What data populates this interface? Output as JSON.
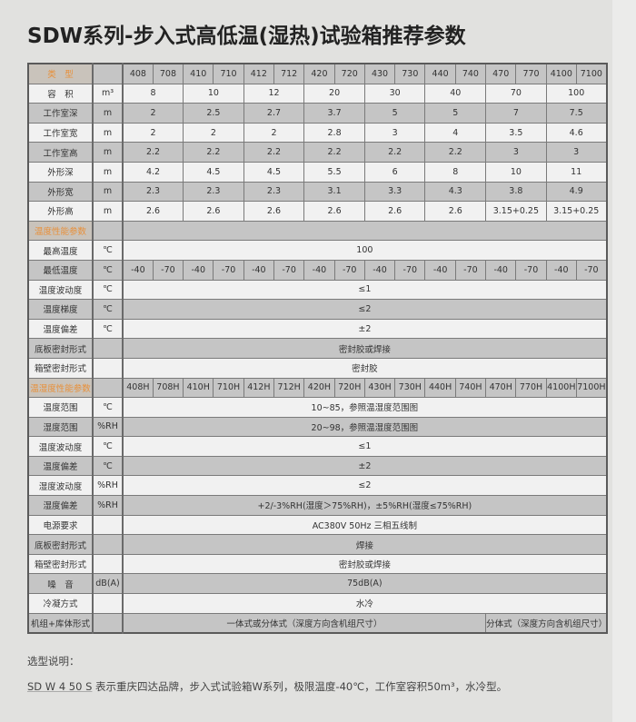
{
  "title": "SDW系列-步入式高低温(湿热)试验箱推荐参数",
  "colors": {
    "section_label": "#e8903a",
    "row_light": "#f1f1f1",
    "row_dark": "#c5c5c5",
    "background": "#e1e1df"
  },
  "rows": [
    {
      "label": "类　型",
      "unit": "",
      "section": true,
      "shade": "g",
      "cells": [
        {
          "t": "408"
        },
        {
          "t": "708"
        },
        {
          "t": "410"
        },
        {
          "t": "710"
        },
        {
          "t": "412"
        },
        {
          "t": "712"
        },
        {
          "t": "420"
        },
        {
          "t": "720"
        },
        {
          "t": "430"
        },
        {
          "t": "730"
        },
        {
          "t": "440"
        },
        {
          "t": "740"
        },
        {
          "t": "470"
        },
        {
          "t": "770"
        },
        {
          "t": "4100"
        },
        {
          "t": "7100"
        }
      ]
    },
    {
      "label": "容　积",
      "unit": "m³",
      "shade": "w",
      "cells": [
        {
          "t": "8",
          "s": 2
        },
        {
          "t": "10",
          "s": 2
        },
        {
          "t": "12",
          "s": 2
        },
        {
          "t": "20",
          "s": 2
        },
        {
          "t": "30",
          "s": 2
        },
        {
          "t": "40",
          "s": 2
        },
        {
          "t": "70",
          "s": 2
        },
        {
          "t": "100",
          "s": 2
        }
      ]
    },
    {
      "label": "工作室深",
      "unit": "m",
      "shade": "g",
      "cells": [
        {
          "t": "2",
          "s": 2
        },
        {
          "t": "2.5",
          "s": 2
        },
        {
          "t": "2.7",
          "s": 2
        },
        {
          "t": "3.7",
          "s": 2
        },
        {
          "t": "5",
          "s": 2
        },
        {
          "t": "5",
          "s": 2
        },
        {
          "t": "7",
          "s": 2
        },
        {
          "t": "7.5",
          "s": 2
        }
      ]
    },
    {
      "label": "工作室宽",
      "unit": "m",
      "shade": "w",
      "cells": [
        {
          "t": "2",
          "s": 2
        },
        {
          "t": "2",
          "s": 2
        },
        {
          "t": "2",
          "s": 2
        },
        {
          "t": "2.8",
          "s": 2
        },
        {
          "t": "3",
          "s": 2
        },
        {
          "t": "4",
          "s": 2
        },
        {
          "t": "3.5",
          "s": 2
        },
        {
          "t": "4.6",
          "s": 2
        }
      ]
    },
    {
      "label": "工作室高",
      "unit": "m",
      "shade": "g",
      "cells": [
        {
          "t": "2.2",
          "s": 2
        },
        {
          "t": "2.2",
          "s": 2
        },
        {
          "t": "2.2",
          "s": 2
        },
        {
          "t": "2.2",
          "s": 2
        },
        {
          "t": "2.2",
          "s": 2
        },
        {
          "t": "2.2",
          "s": 2
        },
        {
          "t": "3",
          "s": 2
        },
        {
          "t": "3",
          "s": 2
        }
      ]
    },
    {
      "label": "外形深",
      "unit": "m",
      "shade": "w",
      "cells": [
        {
          "t": "4.2",
          "s": 2
        },
        {
          "t": "4.5",
          "s": 2
        },
        {
          "t": "4.5",
          "s": 2
        },
        {
          "t": "5.5",
          "s": 2
        },
        {
          "t": "6",
          "s": 2
        },
        {
          "t": "8",
          "s": 2
        },
        {
          "t": "10",
          "s": 2
        },
        {
          "t": "11",
          "s": 2
        }
      ]
    },
    {
      "label": "外形宽",
      "unit": "m",
      "shade": "g",
      "cells": [
        {
          "t": "2.3",
          "s": 2
        },
        {
          "t": "2.3",
          "s": 2
        },
        {
          "t": "2.3",
          "s": 2
        },
        {
          "t": "3.1",
          "s": 2
        },
        {
          "t": "3.3",
          "s": 2
        },
        {
          "t": "4.3",
          "s": 2
        },
        {
          "t": "3.8",
          "s": 2
        },
        {
          "t": "4.9",
          "s": 2
        }
      ]
    },
    {
      "label": "外形高",
      "unit": "m",
      "shade": "w",
      "cells": [
        {
          "t": "2.6",
          "s": 2
        },
        {
          "t": "2.6",
          "s": 2
        },
        {
          "t": "2.6",
          "s": 2
        },
        {
          "t": "2.6",
          "s": 2
        },
        {
          "t": "2.6",
          "s": 2
        },
        {
          "t": "2.6",
          "s": 2
        },
        {
          "t": "3.15+0.25",
          "s": 2
        },
        {
          "t": "3.15+0.25",
          "s": 2
        }
      ]
    },
    {
      "label": "温度性能参数",
      "unit": "",
      "section": true,
      "shade": "g",
      "cells": [
        {
          "t": "",
          "s": 16
        }
      ]
    },
    {
      "label": "最高温度",
      "unit": "℃",
      "shade": "w",
      "cells": [
        {
          "t": "100",
          "s": 16
        }
      ]
    },
    {
      "label": "最低温度",
      "unit": "℃",
      "shade": "g",
      "cells": [
        {
          "t": "-40"
        },
        {
          "t": "-70"
        },
        {
          "t": "-40"
        },
        {
          "t": "-70"
        },
        {
          "t": "-40"
        },
        {
          "t": "-70"
        },
        {
          "t": "-40"
        },
        {
          "t": "-70"
        },
        {
          "t": "-40"
        },
        {
          "t": "-70"
        },
        {
          "t": "-40"
        },
        {
          "t": "-70"
        },
        {
          "t": "-40"
        },
        {
          "t": "-70"
        },
        {
          "t": "-40"
        },
        {
          "t": "-70"
        }
      ]
    },
    {
      "label": "温度波动度",
      "unit": "℃",
      "shade": "w",
      "cells": [
        {
          "t": "≤1",
          "s": 16
        }
      ]
    },
    {
      "label": "温度梯度",
      "unit": "℃",
      "shade": "g",
      "cells": [
        {
          "t": "≤2",
          "s": 16
        }
      ]
    },
    {
      "label": "温度偏差",
      "unit": "℃",
      "shade": "w",
      "cells": [
        {
          "t": "±2",
          "s": 16
        }
      ]
    },
    {
      "label": "底板密封形式",
      "unit": "",
      "shade": "g",
      "cells": [
        {
          "t": "密封胶或焊接",
          "s": 16
        }
      ]
    },
    {
      "label": "箱壁密封形式",
      "unit": "",
      "shade": "w",
      "cells": [
        {
          "t": "密封胶",
          "s": 16
        }
      ]
    },
    {
      "label": "温湿度性能参数",
      "unit": "",
      "section": true,
      "shade": "g",
      "cells": [
        {
          "t": "408H"
        },
        {
          "t": "708H"
        },
        {
          "t": "410H"
        },
        {
          "t": "710H"
        },
        {
          "t": "412H"
        },
        {
          "t": "712H"
        },
        {
          "t": "420H"
        },
        {
          "t": "720H"
        },
        {
          "t": "430H"
        },
        {
          "t": "730H"
        },
        {
          "t": "440H"
        },
        {
          "t": "740H"
        },
        {
          "t": "470H"
        },
        {
          "t": "770H"
        },
        {
          "t": "4100H"
        },
        {
          "t": "7100H"
        }
      ]
    },
    {
      "label": "温度范围",
      "unit": "℃",
      "shade": "w",
      "cells": [
        {
          "t": "10~85，参照温湿度范围图",
          "s": 16
        }
      ]
    },
    {
      "label": "湿度范围",
      "unit": "%RH",
      "shade": "g",
      "cells": [
        {
          "t": "20~98，参照温湿度范围图",
          "s": 16
        }
      ]
    },
    {
      "label": "温度波动度",
      "unit": "℃",
      "shade": "w",
      "cells": [
        {
          "t": "≤1",
          "s": 16
        }
      ]
    },
    {
      "label": "温度偏差",
      "unit": "℃",
      "shade": "g",
      "cells": [
        {
          "t": "±2",
          "s": 16
        }
      ]
    },
    {
      "label": "湿度波动度",
      "unit": "%RH",
      "shade": "w",
      "cells": [
        {
          "t": "≤2",
          "s": 16
        }
      ]
    },
    {
      "label": "湿度偏差",
      "unit": "%RH",
      "shade": "g",
      "cells": [
        {
          "t": "+2/-3%RH(湿度＞75%RH)，±5%RH(湿度≤75%RH)",
          "s": 16
        }
      ]
    },
    {
      "label": "电源要求",
      "unit": "",
      "shade": "w",
      "cells": [
        {
          "t": "AC380V 50Hz 三相五线制",
          "s": 16
        }
      ]
    },
    {
      "label": "底板密封形式",
      "unit": "",
      "shade": "g",
      "cells": [
        {
          "t": "焊接",
          "s": 16
        }
      ]
    },
    {
      "label": "箱壁密封形式",
      "unit": "",
      "shade": "w",
      "cells": [
        {
          "t": "密封胶或焊接",
          "s": 16
        }
      ]
    },
    {
      "label": "噪　音",
      "unit": "dB(A)",
      "shade": "g",
      "cells": [
        {
          "t": "75dB(A)",
          "s": 16
        }
      ]
    },
    {
      "label": "冷凝方式",
      "unit": "",
      "shade": "w",
      "cells": [
        {
          "t": "水冷",
          "s": 16
        }
      ]
    },
    {
      "label": "机组+库体形式",
      "unit": "",
      "shade": "g",
      "cells": [
        {
          "t": "一体式或分体式（深度方向含机组尺寸）",
          "s": 12
        },
        {
          "t": "分体式（深度方向含机组尺寸）",
          "s": 4
        }
      ]
    }
  ],
  "notes": {
    "heading": "选型说明：",
    "code": "SD W 4 50 S",
    "text": " 表示重庆四达品牌，步入式试验箱W系列，极限温度-40℃，工作室容积50m³，水冷型。"
  }
}
